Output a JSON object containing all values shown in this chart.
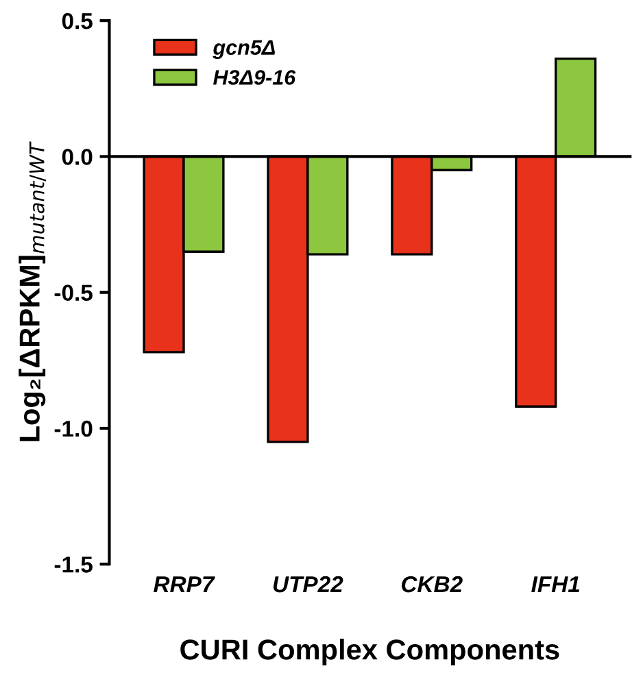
{
  "chart_data": {
    "type": "bar",
    "xlabel": "CURI Complex Components",
    "ylabel": "Log₂[ΔRPKM]$_{mutant/WT}$",
    "categories": [
      "RRP7",
      "UTP22",
      "CKB2",
      "IFH1"
    ],
    "series": [
      {
        "name": "gcn5Δ",
        "color": "#e8321c",
        "values": [
          -0.72,
          -1.05,
          -0.36,
          -0.92
        ]
      },
      {
        "name": "H3Δ9-16",
        "color": "#8dc63f",
        "values": [
          -0.35,
          -0.36,
          -0.05,
          0.36
        ]
      }
    ],
    "ylim": [
      -1.5,
      0.5
    ],
    "yticks": [
      {
        "value": 0.5,
        "label": "0.5"
      },
      {
        "value": 0,
        "label": "0.0"
      },
      {
        "value": -0.5,
        "label": "-0.5"
      },
      {
        "value": -1.0,
        "label": "-1.0"
      },
      {
        "value": -1.5,
        "label": "-1.5"
      }
    ],
    "legend": "top left"
  }
}
